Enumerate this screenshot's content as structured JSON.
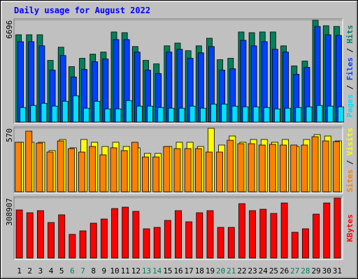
{
  "chart_data": [
    {
      "type": "bar",
      "title": "Daily usage for August 2022",
      "ylim": [
        0,
        6696
      ],
      "yticks": [
        6696
      ],
      "series": [
        {
          "name": "Hits",
          "color": "#00805c",
          "values": [
            5739,
            5739,
            5739,
            4054,
            4920,
            3644,
            4191,
            4464,
            4601,
            5922,
            5876,
            4965,
            4054,
            3826,
            5011,
            5193,
            4692,
            5011,
            5512,
            4100,
            4191,
            5922,
            5876,
            5922,
            5922,
            5011,
            3690,
            4009,
            6696,
            6332,
            6286
          ]
        },
        {
          "name": "Files",
          "color": "#0040ff",
          "values": [
            5284,
            5284,
            5011,
            3416,
            4373,
            2961,
            3462,
            3963,
            4145,
            5421,
            5421,
            4601,
            3416,
            3189,
            4601,
            4783,
            4191,
            4555,
            4965,
            3416,
            3507,
            5375,
            5011,
            5284,
            4783,
            4601,
            3143,
            3599,
            6286,
            5739,
            5694
          ]
        },
        {
          "name": "Pages",
          "color": "#00e0ff",
          "values": [
            957,
            1093,
            1230,
            1048,
            1367,
            1731,
            911,
            1367,
            865,
            865,
            1412,
            1048,
            1048,
            957,
            911,
            911,
            1048,
            911,
            1184,
            1184,
            1048,
            1002,
            1002,
            957,
            865,
            911,
            957,
            1002,
            1093,
            1048,
            1002
          ]
        }
      ]
    },
    {
      "type": "bar",
      "ylim": [
        0,
        570
      ],
      "yticks": [
        570
      ],
      "series": [
        {
          "name": "Visits",
          "color": "#ffff00",
          "values": [
            445,
            445,
            445,
            370,
            470,
            395,
            470,
            445,
            407,
            445,
            407,
            395,
            345,
            345,
            407,
            445,
            445,
            407,
            570,
            420,
            501,
            445,
            470,
            470,
            445,
            470,
            407,
            470,
            514,
            501,
            457
          ]
        },
        {
          "name": "Sites",
          "color": "#ff8000",
          "values": [
            445,
            545,
            438,
            357,
            457,
            388,
            357,
            407,
            332,
            395,
            370,
            445,
            313,
            313,
            407,
            388,
            388,
            388,
            357,
            357,
            463,
            432,
            432,
            420,
            426,
            420,
            420,
            420,
            495,
            457,
            451
          ]
        }
      ]
    },
    {
      "type": "bar",
      "ylim": [
        0,
        308907
      ],
      "yticks": [
        308907
      ],
      "categories": [
        "1",
        "2",
        "3",
        "4",
        "5",
        "6",
        "7",
        "8",
        "9",
        "10",
        "11",
        "12",
        "13",
        "14",
        "15",
        "16",
        "17",
        "18",
        "19",
        "20",
        "21",
        "22",
        "23",
        "24",
        "25",
        "26",
        "27",
        "28",
        "29",
        "30",
        "31"
      ],
      "category_colors": [
        "#000000",
        "#000000",
        "#000000",
        "#000000",
        "#000000",
        "#00805c",
        "#00805c",
        "#000000",
        "#000000",
        "#000000",
        "#000000",
        "#000000",
        "#00805c",
        "#00805c",
        "#000000",
        "#000000",
        "#000000",
        "#000000",
        "#000000",
        "#00805c",
        "#00805c",
        "#000000",
        "#000000",
        "#000000",
        "#000000",
        "#000000",
        "#00805c",
        "#00805c",
        "#000000",
        "#000000",
        "#000000"
      ],
      "series": [
        {
          "name": "KBytes",
          "color": "#ff0000",
          "values": [
            247844,
            233476,
            244252,
            183189,
            222700,
            122127,
            140086,
            179597,
            201149,
            255028,
            262212,
            240661,
            150862,
            158046,
            193965,
            244252,
            186781,
            233476,
            244252,
            158046,
            158046,
            280171,
            244252,
            251434,
            229885,
            283763,
            132904,
            150862,
            226293,
            283763,
            308907
          ]
        }
      ]
    }
  ]
}
